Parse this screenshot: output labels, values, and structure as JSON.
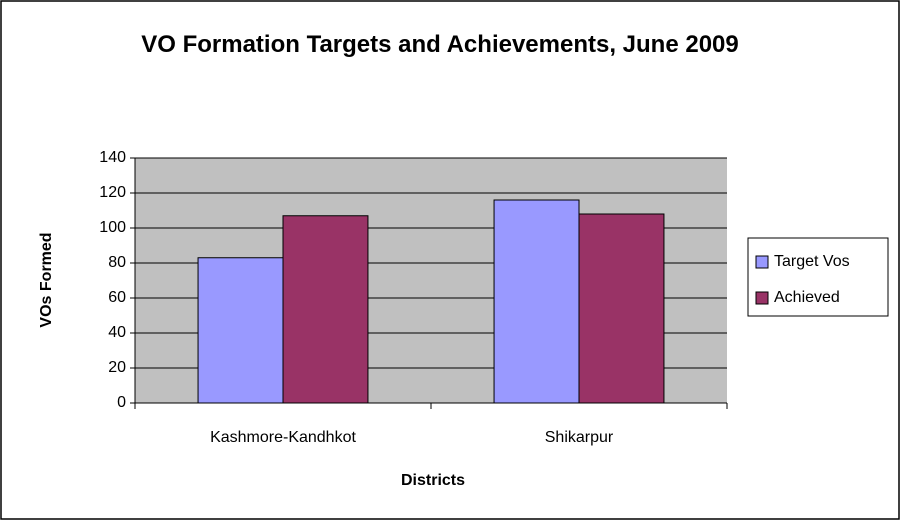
{
  "chart_data": {
    "type": "bar",
    "title": "VO Formation Targets and Achievements, June 2009",
    "xlabel": "Districts",
    "ylabel": "VOs Formed",
    "categories": [
      "Kashmore-Kandhkot",
      "Shikarpur"
    ],
    "series": [
      {
        "name": "Target Vos",
        "color": "#9999ff",
        "values": [
          83,
          116
        ]
      },
      {
        "name": "Achieved",
        "color": "#993366",
        "values": [
          107,
          108
        ]
      }
    ],
    "ylim": [
      0,
      140
    ],
    "yticks": [
      0,
      20,
      40,
      60,
      80,
      100,
      120,
      140
    ],
    "grid": true,
    "legend": "right"
  }
}
